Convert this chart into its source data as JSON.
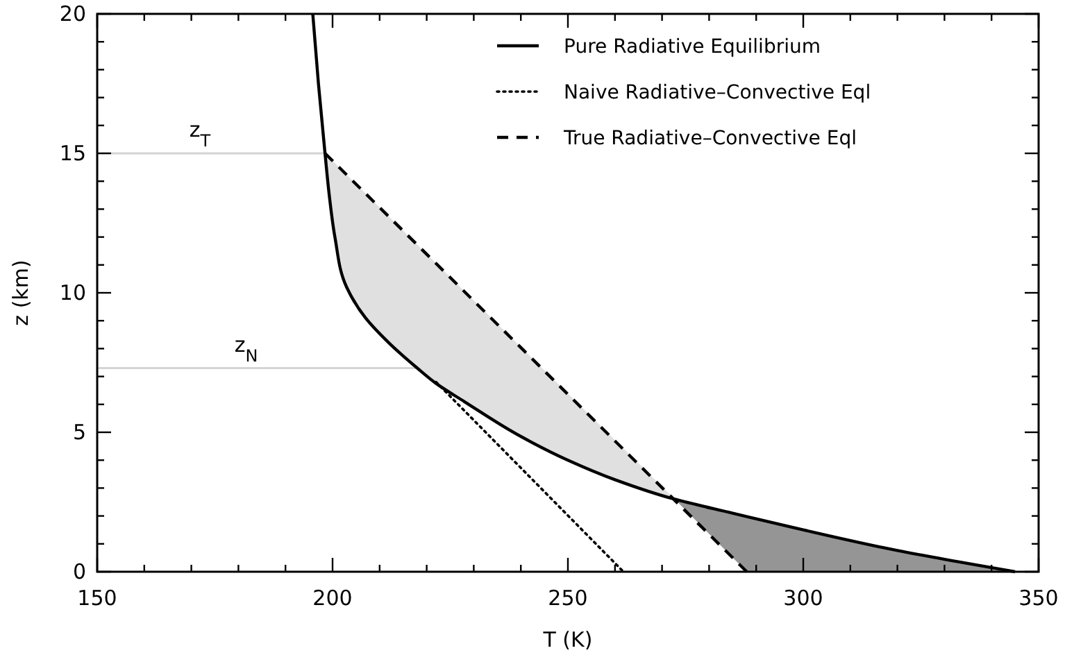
{
  "chart_data": {
    "type": "line",
    "xlabel": "T (K)",
    "ylabel": "z (km)",
    "xlim": [
      150,
      350
    ],
    "ylim": [
      0,
      20
    ],
    "xticks": [
      150,
      {
        "value": 160,
        "label": null
      },
      {
        "value": 170,
        "label": null
      },
      {
        "value": 180,
        "label": null
      },
      {
        "value": 190,
        "label": null
      },
      200,
      {
        "value": 210,
        "label": null
      },
      {
        "value": 220,
        "label": null
      },
      {
        "value": 230,
        "label": null
      },
      {
        "value": 240,
        "label": null
      },
      250,
      {
        "value": 260,
        "label": null
      },
      {
        "value": 270,
        "label": null
      },
      {
        "value": 280,
        "label": null
      },
      {
        "value": 290,
        "label": null
      },
      300,
      {
        "value": 310,
        "label": null
      },
      {
        "value": 320,
        "label": null
      },
      {
        "value": 330,
        "label": null
      },
      {
        "value": 340,
        "label": null
      },
      350
    ],
    "yticks": [
      0,
      {
        "value": 1,
        "label": null
      },
      {
        "value": 2,
        "label": null
      },
      {
        "value": 3,
        "label": null
      },
      {
        "value": 4,
        "label": null
      },
      5,
      {
        "value": 6,
        "label": null
      },
      {
        "value": 7,
        "label": null
      },
      {
        "value": 8,
        "label": null
      },
      {
        "value": 9,
        "label": null
      },
      10,
      {
        "value": 11,
        "label": null
      },
      {
        "value": 12,
        "label": null
      },
      {
        "value": 13,
        "label": null
      },
      {
        "value": 14,
        "label": null
      },
      15,
      {
        "value": 16,
        "label": null
      },
      {
        "value": 17,
        "label": null
      },
      {
        "value": 18,
        "label": null
      },
      {
        "value": 19,
        "label": null
      },
      20
    ],
    "grid": false,
    "legend": "top right",
    "series": [
      {
        "type": "area",
        "color": "#e0e0e0",
        "x": [
          198.4,
          272.7,
          260,
          250,
          240,
          228,
          222,
          218,
          212,
          207,
          203,
          200.5,
          199.3,
          198.4
        ],
        "values": [
          15,
          2.6,
          3.3,
          4,
          4.85,
          6.1,
          6.75,
          7.3,
          8.2,
          9.1,
          10.2,
          12,
          13.5,
          15
        ]
      },
      {
        "type": "area",
        "color": "#959595",
        "x": [
          272.7,
          288,
          345,
          320,
          300,
          285,
          272.7
        ],
        "values": [
          2.6,
          0,
          0,
          0.76,
          1.5,
          2.1,
          2.6
        ]
      },
      {
        "name": "Pure Radiative Equilibrium",
        "color": "#000000",
        "line_style": "solid",
        "x": [
          345,
          320,
          300,
          285,
          272.7,
          260,
          250,
          240,
          228,
          222,
          218,
          212,
          207,
          203,
          200.5,
          199.3,
          198.4,
          197,
          195.8
        ],
        "values": [
          0,
          0.76,
          1.5,
          2.1,
          2.6,
          3.3,
          4,
          4.85,
          6.1,
          6.75,
          7.3,
          8.2,
          9.1,
          10.2,
          12,
          13.5,
          15,
          17.5,
          20
        ]
      },
      {
        "name": "Naive Radiative–Convective Eql",
        "color": "#000000",
        "line_style": "dotted",
        "x": [
          222,
          261.8
        ],
        "values": [
          6.8,
          0
        ]
      },
      {
        "name": "True Radiative–Convective Eql",
        "color": "#000000",
        "line_style": "dashed",
        "x": [
          198.4,
          288
        ],
        "values": [
          15,
          0
        ]
      }
    ],
    "ref_lines": [
      {
        "axis": "y",
        "value": 15,
        "label": "z$_{T}$",
        "color": "#d4d4d4"
      },
      {
        "axis": "y",
        "value": 7.3,
        "label": "z$_{N}$",
        "color": "#d4d4d4"
      }
    ]
  }
}
